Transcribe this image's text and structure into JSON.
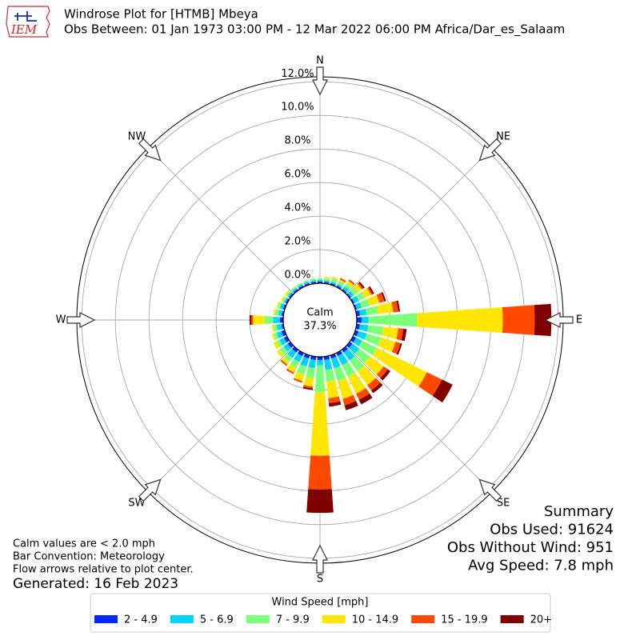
{
  "chart_data": {
    "type": "windrose",
    "logo_text": "IEM",
    "title": "Windrose Plot for [HTMB] Mbeya",
    "subtitle": "Obs Between: 01 Jan 1973 03:00 PM - 12 Mar 2022 06:00 PM Africa/Dar_es_Salaam",
    "x": [
      0,
      10,
      20,
      30,
      40,
      50,
      60,
      70,
      80,
      90,
      100,
      110,
      120,
      130,
      140,
      150,
      160,
      170,
      180,
      190,
      200,
      210,
      220,
      230,
      240,
      250,
      260,
      270,
      280,
      290,
      300,
      310,
      320,
      330,
      340,
      350
    ],
    "xlim": [
      0,
      360
    ],
    "xticks": [
      {
        "value": 0,
        "label": "N"
      },
      {
        "value": 45,
        "label": "NE"
      },
      {
        "value": 90,
        "label": "E"
      },
      {
        "value": 135,
        "label": "SE"
      },
      {
        "value": 180,
        "label": "S"
      },
      {
        "value": 225,
        "label": "SW"
      },
      {
        "value": 270,
        "label": "W"
      },
      {
        "value": 315,
        "label": "NW"
      }
    ],
    "ylim": [
      0,
      12.3
    ],
    "yticks": [
      {
        "value": 0,
        "label": "0.0%"
      },
      {
        "value": 2,
        "label": "2.0%"
      },
      {
        "value": 4,
        "label": "4.0%"
      },
      {
        "value": 6,
        "label": "6.0%"
      },
      {
        "value": 8,
        "label": "8.0%"
      },
      {
        "value": 10,
        "label": "10.0%"
      },
      {
        "value": 12,
        "label": "12.0%"
      }
    ],
    "grid": true,
    "calm_label": "Calm",
    "calm": 37.3,
    "calm_value_label": "37.3%",
    "legend_title": "Wind Speed [mph]",
    "series": [
      {
        "name": "2 - 4.9",
        "color": "#0028ff",
        "values": [
          0.1,
          0.1,
          0.1,
          0.1,
          0.1,
          0.1,
          0.1,
          0.1,
          0.2,
          0.3,
          0.2,
          0.2,
          0.2,
          0.2,
          0.2,
          0.2,
          0.2,
          0.2,
          0.2,
          0.2,
          0.2,
          0.2,
          0.2,
          0.2,
          0.2,
          0.2,
          0.1,
          0.2,
          0.1,
          0.1,
          0.1,
          0.1,
          0.1,
          0.1,
          0.1,
          0.1
        ]
      },
      {
        "name": "5 - 6.9",
        "color": "#00d5ff",
        "values": [
          0.1,
          0.1,
          0.1,
          0.1,
          0.2,
          0.2,
          0.3,
          0.3,
          0.4,
          0.4,
          0.5,
          0.5,
          0.4,
          0.5,
          0.6,
          0.6,
          0.6,
          0.6,
          0.3,
          0.5,
          0.5,
          0.4,
          0.4,
          0.3,
          0.3,
          0.3,
          0.3,
          0.4,
          0.2,
          0.2,
          0.1,
          0.1,
          0.1,
          0.1,
          0.1,
          0.1
        ]
      },
      {
        "name": "7 - 9.9",
        "color": "#7cff7a",
        "values": [
          0.1,
          0.1,
          0.2,
          0.2,
          0.2,
          0.3,
          0.4,
          0.5,
          0.7,
          2.9,
          0.9,
          0.9,
          1.0,
          0.8,
          0.8,
          0.8,
          0.8,
          0.7,
          1.6,
          0.6,
          0.5,
          0.4,
          0.3,
          0.3,
          0.2,
          0.2,
          0.2,
          0.5,
          0.2,
          0.1,
          0.1,
          0.1,
          0.1,
          0.1,
          0.1,
          0.1
        ]
      },
      {
        "name": "10 - 14.9",
        "color": "#ffe600",
        "values": [
          0.0,
          0.1,
          0.1,
          0.1,
          0.2,
          0.3,
          0.4,
          0.6,
          0.9,
          5.1,
          0.9,
          0.9,
          3.3,
          1.0,
          1.0,
          1.1,
          1.1,
          1.0,
          3.8,
          0.5,
          0.4,
          0.3,
          0.2,
          0.2,
          0.2,
          0.1,
          0.1,
          0.7,
          0.1,
          0.1,
          0.1,
          0.1,
          0.0,
          0.0,
          0.0,
          0.0
        ]
      },
      {
        "name": "15 - 19.9",
        "color": "#ff4800",
        "values": [
          0.0,
          0.0,
          0.0,
          0.1,
          0.1,
          0.1,
          0.1,
          0.3,
          0.3,
          1.9,
          0.3,
          0.3,
          1.0,
          0.3,
          0.4,
          0.4,
          0.4,
          0.3,
          2.0,
          0.1,
          0.1,
          0.1,
          0.1,
          0.0,
          0.0,
          0.0,
          0.0,
          0.1,
          0.0,
          0.0,
          0.0,
          0.0,
          0.0,
          0.0,
          0.0,
          0.0
        ]
      },
      {
        "name": "20+",
        "color": "#7f0000",
        "values": [
          0.0,
          0.0,
          0.0,
          0.0,
          0.0,
          0.1,
          0.1,
          0.1,
          0.1,
          1.0,
          0.2,
          0.1,
          0.7,
          0.2,
          0.2,
          0.3,
          0.3,
          0.2,
          1.4,
          0.1,
          0.0,
          0.0,
          0.0,
          0.0,
          0.0,
          0.0,
          0.0,
          0.1,
          0.0,
          0.0,
          0.0,
          0.0,
          0.0,
          0.0,
          0.0,
          0.0
        ]
      }
    ],
    "notes": [
      "Calm values are < 2.0 mph",
      "Bar Convention: Meteorology",
      "Flow arrows relative to plot center."
    ],
    "generated": "Generated: 16 Feb 2023",
    "summary": [
      "Summary",
      "Obs Used: 91624",
      "Obs Without Wind: 951",
      "Avg Speed: 7.8 mph"
    ]
  }
}
